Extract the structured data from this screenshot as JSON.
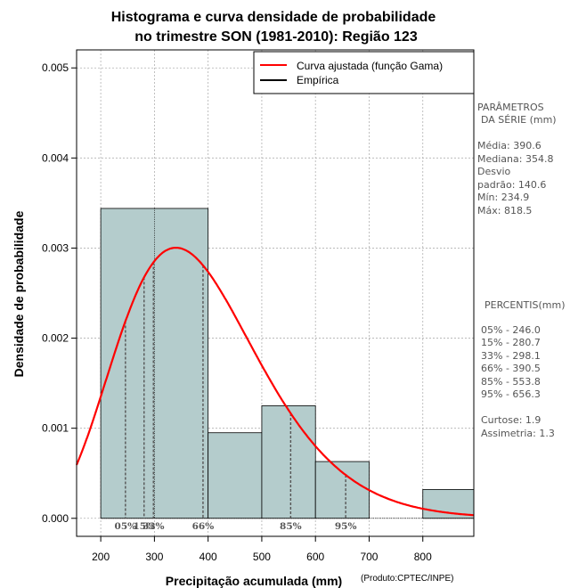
{
  "chart_data": {
    "type": "bar",
    "title_line1": "Histograma e curva densidade de probabilidade",
    "title_line2": "no trimestre SON (1981-2010): Região 123",
    "xlabel": "Precipitação acumulada (mm)",
    "ylabel": "Densidade de probabilidade",
    "credit": "(Produto:CPTEC/INPE)",
    "xlim": [
      155,
      895
    ],
    "ylim": [
      -0.0002,
      0.0052
    ],
    "x_ticks": [
      200,
      300,
      400,
      500,
      600,
      700,
      800
    ],
    "y_ticks": [
      0.0,
      0.001,
      0.002,
      0.003,
      0.004,
      0.005
    ],
    "y_tick_labels": [
      "0.000",
      "0.001",
      "0.002",
      "0.003",
      "0.004",
      "0.005"
    ],
    "grid": true,
    "bins": [
      {
        "from": 200,
        "to": 400,
        "density": 0.00344
      },
      {
        "from": 400,
        "to": 500,
        "density": 0.00095
      },
      {
        "from": 500,
        "to": 600,
        "density": 0.00125
      },
      {
        "from": 600,
        "to": 700,
        "density": 0.00063
      },
      {
        "from": 800,
        "to": 900,
        "density": 0.00032
      }
    ],
    "gamma_fit": {
      "shape": 7.72,
      "scale": 50.6
    },
    "legend": {
      "position": "top-right",
      "entries": [
        {
          "label": "Curva ajustada (função Gama)",
          "color": "#ff0000"
        },
        {
          "label": "Empírica",
          "color": "#000000"
        }
      ]
    },
    "percentile_markers": [
      {
        "label": "05%",
        "value": 246.0
      },
      {
        "label": "15%",
        "value": 280.7
      },
      {
        "label": "33%",
        "value": 298.1
      },
      {
        "label": "66%",
        "value": 390.5
      },
      {
        "label": "85%",
        "value": 553.8
      },
      {
        "label": "95%",
        "value": 656.3
      }
    ],
    "colors": {
      "bar_fill": "#b4cccc",
      "curve": "#ff0000",
      "grid": "#b0b0b0",
      "percentile_line": "#555555"
    }
  },
  "side_panel": {
    "params_title_1": "PARÂMETROS",
    "params_title_2": "DA SÉRIE (mm)",
    "media": "Média:  390.6",
    "mediana": "Mediana:  354.8",
    "desvio_1": "Desvio",
    "desvio_2": "padrão:  140.6",
    "min": "Mín:  234.9",
    "max": "Máx:  818.5",
    "percentis_title": "PERCENTIS(mm)",
    "p05": "05% -  246.0",
    "p15": "15% -  280.7",
    "p33": "33% -  298.1",
    "p66": "66% -  390.5",
    "p85": "85% -  553.8",
    "p95": "95% -  656.3",
    "curtose": "Curtose:  1.9",
    "assimetria": "Assimetria:  1.3"
  }
}
